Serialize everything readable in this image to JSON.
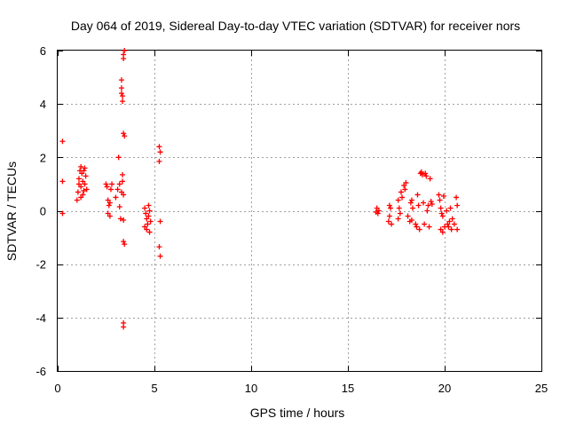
{
  "chart_data": {
    "type": "scatter",
    "title": "Day 064 of 2019, Sidereal Day-to-day VTEC variation (SDTVAR) for receiver nors",
    "xlabel": "GPS time / hours",
    "ylabel": "SDTVAR / TECUs",
    "xlim": [
      0,
      25
    ],
    "ylim": [
      -6,
      6
    ],
    "x_ticks": [
      0,
      5,
      10,
      15,
      20,
      25
    ],
    "y_ticks": [
      -6,
      -4,
      -2,
      0,
      2,
      4,
      6
    ],
    "grid": true,
    "marker": "+",
    "color": "#ff0000",
    "series": [
      {
        "name": "SDTVAR",
        "points": [
          [
            0.25,
            2.6
          ],
          [
            0.25,
            1.1
          ],
          [
            0.25,
            -0.1
          ],
          [
            1.0,
            0.4
          ],
          [
            1.05,
            0.7
          ],
          [
            1.1,
            1.2
          ],
          [
            1.15,
            1.5
          ],
          [
            1.2,
            1.65
          ],
          [
            1.2,
            0.9
          ],
          [
            1.25,
            1.4
          ],
          [
            1.3,
            1.1
          ],
          [
            1.3,
            0.6
          ],
          [
            1.35,
            1.5
          ],
          [
            1.4,
            1.0
          ],
          [
            1.45,
            1.3
          ],
          [
            1.5,
            0.8
          ],
          [
            1.1,
            1.0
          ],
          [
            1.2,
            0.5
          ],
          [
            1.4,
            1.6
          ],
          [
            1.35,
            0.75
          ],
          [
            2.5,
            1.0
          ],
          [
            2.55,
            0.9
          ],
          [
            2.6,
            0.4
          ],
          [
            2.65,
            0.2
          ],
          [
            2.7,
            -0.2
          ],
          [
            2.75,
            0.8
          ],
          [
            2.8,
            1.0
          ],
          [
            2.6,
            -0.1
          ],
          [
            2.7,
            0.3
          ],
          [
            3.0,
            0.5
          ],
          [
            3.1,
            0.8
          ],
          [
            3.15,
            2.0
          ],
          [
            3.2,
            0.15
          ],
          [
            3.25,
            -0.3
          ],
          [
            3.3,
            0.7
          ],
          [
            3.35,
            1.1
          ],
          [
            3.35,
            1.35
          ],
          [
            3.4,
            0.6
          ],
          [
            3.4,
            -0.35
          ],
          [
            3.2,
            1.0
          ],
          [
            3.3,
            4.9
          ],
          [
            3.3,
            4.6
          ],
          [
            3.3,
            4.4
          ],
          [
            3.35,
            4.1
          ],
          [
            3.35,
            4.3
          ],
          [
            3.4,
            5.85
          ],
          [
            3.4,
            5.7
          ],
          [
            3.45,
            6.0
          ],
          [
            3.4,
            2.9
          ],
          [
            3.45,
            2.8
          ],
          [
            3.4,
            -1.15
          ],
          [
            3.45,
            -1.25
          ],
          [
            3.4,
            -4.2
          ],
          [
            3.4,
            -4.35
          ],
          [
            4.5,
            0.1
          ],
          [
            4.55,
            -0.1
          ],
          [
            4.6,
            -0.3
          ],
          [
            4.6,
            -0.7
          ],
          [
            4.65,
            -0.5
          ],
          [
            4.7,
            0.2
          ],
          [
            4.7,
            -0.2
          ],
          [
            4.75,
            -0.8
          ],
          [
            4.75,
            0.0
          ],
          [
            4.8,
            -0.4
          ],
          [
            4.5,
            -0.6
          ],
          [
            5.25,
            2.4
          ],
          [
            5.3,
            2.2
          ],
          [
            5.25,
            1.85
          ],
          [
            5.3,
            -0.4
          ],
          [
            5.25,
            -1.35
          ],
          [
            5.3,
            -1.7
          ],
          [
            16.5,
            0.1
          ],
          [
            16.55,
            -0.1
          ],
          [
            16.6,
            0.0
          ],
          [
            16.45,
            -0.05
          ],
          [
            17.1,
            -0.4
          ],
          [
            17.15,
            -0.2
          ],
          [
            17.2,
            0.1
          ],
          [
            17.25,
            -0.5
          ],
          [
            17.15,
            0.2
          ],
          [
            17.6,
            0.4
          ],
          [
            17.65,
            0.1
          ],
          [
            17.7,
            -0.1
          ],
          [
            17.75,
            0.7
          ],
          [
            17.6,
            -0.3
          ],
          [
            17.8,
            0.5
          ],
          [
            17.9,
            0.95
          ],
          [
            18.0,
            1.05
          ],
          [
            17.95,
            0.8
          ],
          [
            18.1,
            -0.2
          ],
          [
            18.2,
            -0.4
          ],
          [
            18.25,
            0.3
          ],
          [
            18.3,
            -0.35
          ],
          [
            18.35,
            0.1
          ],
          [
            18.3,
            0.4
          ],
          [
            18.5,
            -0.5
          ],
          [
            18.55,
            -0.6
          ],
          [
            18.6,
            0.6
          ],
          [
            18.65,
            0.2
          ],
          [
            18.7,
            -0.7
          ],
          [
            18.75,
            1.4
          ],
          [
            18.8,
            1.45
          ],
          [
            18.85,
            1.35
          ],
          [
            18.9,
            0.3
          ],
          [
            18.95,
            -0.5
          ],
          [
            19.0,
            1.4
          ],
          [
            19.05,
            1.3
          ],
          [
            19.1,
            0.0
          ],
          [
            19.15,
            0.2
          ],
          [
            19.2,
            -0.6
          ],
          [
            19.25,
            1.2
          ],
          [
            19.3,
            0.35
          ],
          [
            19.35,
            0.25
          ],
          [
            19.7,
            0.6
          ],
          [
            19.75,
            0.4
          ],
          [
            19.8,
            0.1
          ],
          [
            19.85,
            -0.1
          ],
          [
            19.9,
            -0.2
          ],
          [
            19.95,
            0.55
          ],
          [
            19.8,
            -0.7
          ],
          [
            19.9,
            -0.8
          ],
          [
            20.0,
            -0.6
          ],
          [
            20.1,
            0.0
          ],
          [
            20.15,
            -0.5
          ],
          [
            20.2,
            -0.6
          ],
          [
            20.25,
            -0.4
          ],
          [
            20.3,
            0.1
          ],
          [
            20.35,
            -0.7
          ],
          [
            20.4,
            -0.3
          ],
          [
            20.5,
            -0.5
          ],
          [
            20.6,
            0.5
          ],
          [
            20.65,
            0.2
          ],
          [
            20.65,
            -0.7
          ]
        ]
      }
    ]
  }
}
